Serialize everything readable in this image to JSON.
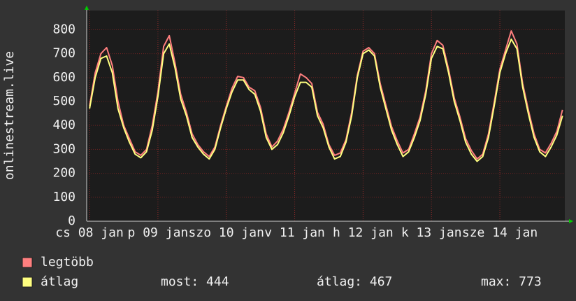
{
  "chart_data": {
    "type": "line",
    "y_label": "onlinestream.live",
    "x": [
      0,
      2,
      4,
      6,
      8,
      10,
      12,
      14,
      16,
      18,
      20,
      22,
      24,
      26,
      28,
      30,
      32,
      34,
      36,
      38,
      40,
      42,
      44,
      46,
      48,
      50,
      52,
      54,
      56,
      58,
      60,
      62,
      64,
      66,
      68,
      70,
      72,
      74,
      76,
      78,
      80,
      82,
      84,
      86,
      88,
      90,
      92,
      94,
      96,
      98,
      100,
      102,
      104,
      106,
      108,
      110,
      112,
      114,
      116,
      118,
      120,
      122,
      124,
      126,
      128,
      130,
      132,
      134,
      136,
      138,
      140,
      142,
      144,
      146,
      148,
      150,
      152,
      154,
      156,
      158,
      160,
      162,
      164,
      166
    ],
    "series": [
      {
        "name": "legtöbb",
        "color": "#ff7f7f",
        "values": [
          480,
          620,
          700,
          725,
          650,
          500,
          400,
          345,
          290,
          275,
          300,
          400,
          540,
          730,
          775,
          660,
          530,
          455,
          365,
          320,
          290,
          270,
          310,
          400,
          480,
          555,
          605,
          600,
          560,
          545,
          475,
          365,
          310,
          335,
          385,
          455,
          535,
          615,
          600,
          575,
          455,
          405,
          320,
          275,
          285,
          340,
          455,
          610,
          710,
          725,
          700,
          575,
          485,
          395,
          335,
          285,
          300,
          365,
          435,
          545,
          700,
          755,
          735,
          635,
          515,
          435,
          345,
          295,
          260,
          280,
          365,
          495,
          635,
          715,
          795,
          740,
          575,
          465,
          365,
          300,
          285,
          325,
          375,
          465
        ]
      },
      {
        "name": "átlag",
        "color": "#ffff80",
        "values": [
          470,
          600,
          680,
          690,
          620,
          470,
          390,
          330,
          280,
          265,
          290,
          380,
          520,
          700,
          740,
          640,
          510,
          440,
          350,
          310,
          280,
          260,
          300,
          390,
          470,
          540,
          590,
          590,
          550,
          530,
          460,
          350,
          300,
          320,
          370,
          440,
          520,
          580,
          580,
          560,
          440,
          390,
          310,
          260,
          270,
          330,
          440,
          600,
          700,
          715,
          690,
          560,
          470,
          380,
          320,
          270,
          290,
          350,
          420,
          530,
          680,
          730,
          720,
          620,
          500,
          420,
          330,
          280,
          250,
          270,
          350,
          480,
          620,
          700,
          760,
          720,
          560,
          450,
          350,
          290,
          270,
          310,
          360,
          440
        ]
      }
    ],
    "xlim": [
      -1,
      166.8
    ],
    "xticks": [
      {
        "value": 0,
        "label": "cs 08 jan"
      },
      {
        "value": 24,
        "label": "p 09 jan"
      },
      {
        "value": 48,
        "label": "szo 10 jan"
      },
      {
        "value": 72,
        "label": "v 11 jan"
      },
      {
        "value": 96,
        "label": "h 12 jan"
      },
      {
        "value": 120,
        "label": "k 13 jan"
      },
      {
        "value": 144,
        "label": "sze 14 jan"
      }
    ],
    "ylim": [
      0,
      880
    ],
    "yticks": [
      0,
      100,
      200,
      300,
      400,
      500,
      600,
      700,
      800
    ],
    "grid": true,
    "stats": [
      "most: 444",
      "átlag: 467",
      "max: 773"
    ]
  }
}
